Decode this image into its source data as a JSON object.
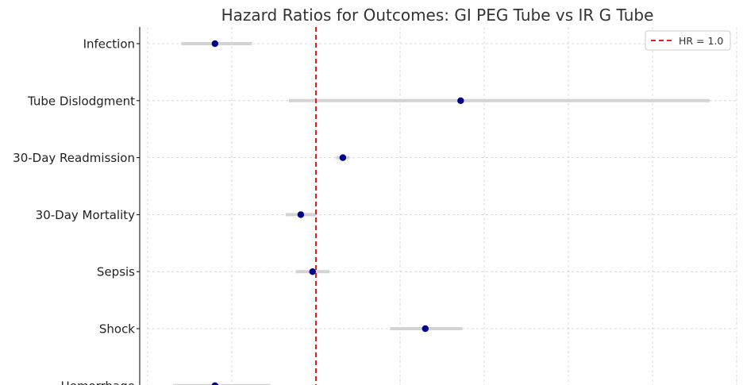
{
  "chart_data": {
    "type": "forest",
    "title": "Hazard Ratios for Outcomes: GI PEG Tube vs IR G Tube",
    "xlabel": "",
    "ylabel": "",
    "xlim": [
      0.0,
      3.5
    ],
    "grid": true,
    "legend": {
      "placement": "top-right",
      "label": "HR = 1.0"
    },
    "reference_line": {
      "x": 1.0,
      "color": "#e02020"
    },
    "point_color": "#00008b",
    "ci_color": "#d3d3d3",
    "outcomes": [
      {
        "name": "Infection",
        "hr": 0.4,
        "ci_low": 0.2,
        "ci_high": 0.62
      },
      {
        "name": "Tube Dislodgment",
        "hr": 1.86,
        "ci_low": 0.84,
        "ci_high": 3.34
      },
      {
        "name": "30-Day Readmission",
        "hr": 1.16,
        "ci_low": 1.12,
        "ci_high": 1.2
      },
      {
        "name": "30-Day Mortality",
        "hr": 0.91,
        "ci_low": 0.82,
        "ci_high": 1.0
      },
      {
        "name": "Sepsis",
        "hr": 0.98,
        "ci_low": 0.88,
        "ci_high": 1.08
      },
      {
        "name": "Shock",
        "hr": 1.65,
        "ci_low": 1.44,
        "ci_high": 1.87
      },
      {
        "name": "Hemorrhage",
        "hr": 0.4,
        "ci_low": 0.15,
        "ci_high": 0.73
      }
    ]
  }
}
